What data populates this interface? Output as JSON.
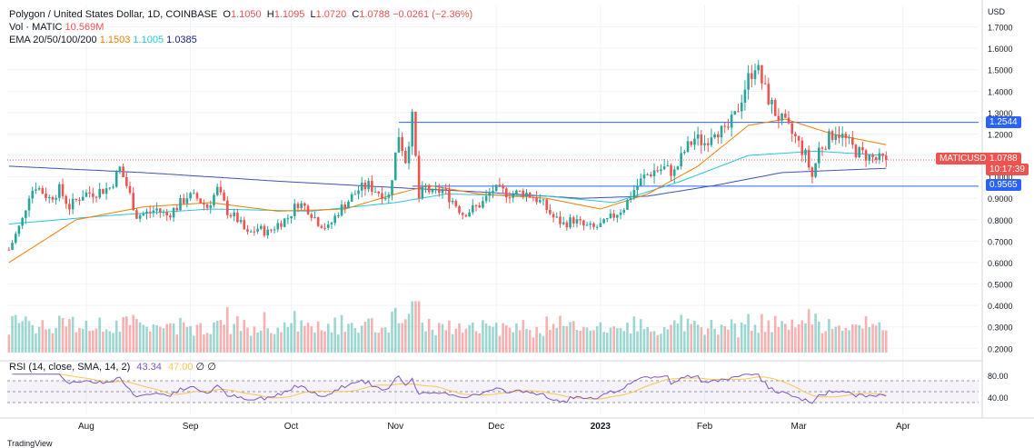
{
  "header": {
    "title": "Polygon / United States Dollar, 1D, COINBASE",
    "ohlc": [
      {
        "label": "O",
        "value": "1.1050"
      },
      {
        "label": "H",
        "value": "1.1095"
      },
      {
        "label": "L",
        "value": "1.0720"
      },
      {
        "label": "C",
        "value": "1.0788"
      }
    ],
    "change": "−0.0261 (−2.36%)",
    "volume_label": "Vol · MATIC",
    "volume_value": "10.569M",
    "ema_label": "EMA 20/50/100/200",
    "ema_values": [
      "1.1503",
      "1.1005",
      "1.0385"
    ]
  },
  "rsi": {
    "label": "RSI (14, close, SMA, 14, 2)",
    "value": "43.34",
    "sma_value": "47.00",
    "extra": [
      "∅",
      "∅"
    ]
  },
  "badges": {
    "symbol": "MATICUSD",
    "resistance": "1.2544",
    "price": "1.0788",
    "countdown": "10:17:39",
    "support": "0.9565"
  },
  "footer": {
    "brand": "TradingView"
  },
  "colors": {
    "up": "#26a69a",
    "down": "#ef5350",
    "ema20": "#f57c00",
    "ema50": "#26c6da",
    "ema200": "#3f51b5",
    "hline": "#2962ff",
    "rsi": "#7e57c2",
    "rsi_sma": "#f9c74f"
  },
  "chart_data": {
    "type": "candlestick",
    "symbol": "MATICUSD",
    "currency": "USD",
    "y_ticks": [
      "1.7000",
      "1.6000",
      "1.5000",
      "1.4000",
      "1.3000",
      "1.2000",
      "1.1000",
      "1.0000",
      "0.9000",
      "0.8000",
      "0.7000",
      "0.6000",
      "0.5000",
      "0.4000",
      "0.3000",
      "0.2000"
    ],
    "y_tick_values": [
      1.7,
      1.6,
      1.5,
      1.4,
      1.3,
      1.2,
      1.1,
      1.0,
      0.9,
      0.8,
      0.7,
      0.6,
      0.5,
      0.4,
      0.3,
      0.2
    ],
    "ylim": [
      0.18,
      1.8
    ],
    "x_ticks": [
      {
        "label": "Aug",
        "day": 23
      },
      {
        "label": "Sep",
        "day": 54
      },
      {
        "label": "Oct",
        "day": 84
      },
      {
        "label": "Nov",
        "day": 115
      },
      {
        "label": "Dec",
        "day": 145
      },
      {
        "label": "2023",
        "day": 176
      },
      {
        "label": "Feb",
        "day": 207
      },
      {
        "label": "Mar",
        "day": 235
      },
      {
        "label": "Apr",
        "day": 266
      }
    ],
    "days_total": 289,
    "horizontal_lines": [
      1.2544,
      0.9565
    ],
    "current_price": 1.0788,
    "price_keypoints": [
      [
        0,
        0.66
      ],
      [
        4,
        0.8
      ],
      [
        6,
        0.92
      ],
      [
        8,
        0.96
      ],
      [
        12,
        0.9
      ],
      [
        15,
        0.94
      ],
      [
        18,
        0.86
      ],
      [
        22,
        0.92
      ],
      [
        26,
        0.93
      ],
      [
        30,
        0.95
      ],
      [
        33,
        1.04
      ],
      [
        35,
        0.96
      ],
      [
        38,
        0.82
      ],
      [
        41,
        0.83
      ],
      [
        44,
        0.85
      ],
      [
        47,
        0.82
      ],
      [
        50,
        0.86
      ],
      [
        53,
        0.91
      ],
      [
        56,
        0.9
      ],
      [
        59,
        0.86
      ],
      [
        62,
        0.94
      ],
      [
        65,
        0.84
      ],
      [
        68,
        0.8
      ],
      [
        71,
        0.73
      ],
      [
        74,
        0.76
      ],
      [
        77,
        0.74
      ],
      [
        80,
        0.78
      ],
      [
        83,
        0.81
      ],
      [
        86,
        0.88
      ],
      [
        89,
        0.85
      ],
      [
        92,
        0.79
      ],
      [
        95,
        0.76
      ],
      [
        98,
        0.84
      ],
      [
        101,
        0.89
      ],
      [
        104,
        0.94
      ],
      [
        107,
        0.96
      ],
      [
        110,
        0.93
      ],
      [
        113,
        0.91
      ],
      [
        116,
        1.2
      ],
      [
        118,
        1.08
      ],
      [
        120,
        1.27
      ],
      [
        122,
        0.9
      ],
      [
        124,
        0.95
      ],
      [
        126,
        0.92
      ],
      [
        129,
        0.94
      ],
      [
        132,
        0.89
      ],
      [
        135,
        0.83
      ],
      [
        138,
        0.85
      ],
      [
        141,
        0.88
      ],
      [
        144,
        0.94
      ],
      [
        147,
        0.93
      ],
      [
        150,
        0.92
      ],
      [
        153,
        0.93
      ],
      [
        156,
        0.91
      ],
      [
        159,
        0.87
      ],
      [
        162,
        0.81
      ],
      [
        165,
        0.78
      ],
      [
        168,
        0.8
      ],
      [
        171,
        0.77
      ],
      [
        174,
        0.76
      ],
      [
        177,
        0.78
      ],
      [
        180,
        0.82
      ],
      [
        183,
        0.86
      ],
      [
        186,
        0.94
      ],
      [
        189,
        1.0
      ],
      [
        192,
        1.03
      ],
      [
        195,
        1.04
      ],
      [
        198,
        1.02
      ],
      [
        201,
        1.12
      ],
      [
        204,
        1.18
      ],
      [
        207,
        1.16
      ],
      [
        210,
        1.23
      ],
      [
        213,
        1.2
      ],
      [
        216,
        1.28
      ],
      [
        219,
        1.42
      ],
      [
        222,
        1.53
      ],
      [
        225,
        1.4
      ],
      [
        228,
        1.3
      ],
      [
        231,
        1.24
      ],
      [
        234,
        1.18
      ],
      [
        237,
        1.1
      ],
      [
        239,
        1.0
      ],
      [
        241,
        1.13
      ],
      [
        244,
        1.18
      ],
      [
        246,
        1.22
      ],
      [
        249,
        1.17
      ],
      [
        252,
        1.12
      ],
      [
        255,
        1.1
      ],
      [
        258,
        1.08
      ],
      [
        261,
        1.079
      ]
    ],
    "ema20_keypoints": [
      [
        0,
        0.6
      ],
      [
        20,
        0.8
      ],
      [
        40,
        0.86
      ],
      [
        60,
        0.88
      ],
      [
        80,
        0.84
      ],
      [
        100,
        0.85
      ],
      [
        115,
        0.92
      ],
      [
        125,
        0.96
      ],
      [
        140,
        0.92
      ],
      [
        160,
        0.9
      ],
      [
        176,
        0.85
      ],
      [
        190,
        0.92
      ],
      [
        205,
        1.05
      ],
      [
        220,
        1.24
      ],
      [
        231,
        1.27
      ],
      [
        245,
        1.2
      ],
      [
        261,
        1.15
      ]
    ],
    "ema50_keypoints": [
      [
        0,
        0.78
      ],
      [
        30,
        0.82
      ],
      [
        60,
        0.85
      ],
      [
        90,
        0.84
      ],
      [
        115,
        0.88
      ],
      [
        130,
        0.92
      ],
      [
        160,
        0.91
      ],
      [
        180,
        0.88
      ],
      [
        200,
        0.98
      ],
      [
        220,
        1.1
      ],
      [
        240,
        1.12
      ],
      [
        261,
        1.1
      ]
    ],
    "ema200_keypoints": [
      [
        0,
        1.05
      ],
      [
        40,
        1.02
      ],
      [
        80,
        0.98
      ],
      [
        115,
        0.95
      ],
      [
        140,
        0.93
      ],
      [
        170,
        0.9
      ],
      [
        190,
        0.91
      ],
      [
        210,
        0.96
      ],
      [
        230,
        1.02
      ],
      [
        245,
        1.03
      ],
      [
        261,
        1.04
      ]
    ],
    "volume_ylim": [
      0,
      0.5
    ],
    "rsi_ticks": [
      "80.00",
      "40.00"
    ],
    "rsi_tick_values": [
      80,
      40
    ],
    "rsi_ylim": [
      25,
      85
    ],
    "rsi_band": [
      70,
      30
    ],
    "rsi_midline": 50
  }
}
